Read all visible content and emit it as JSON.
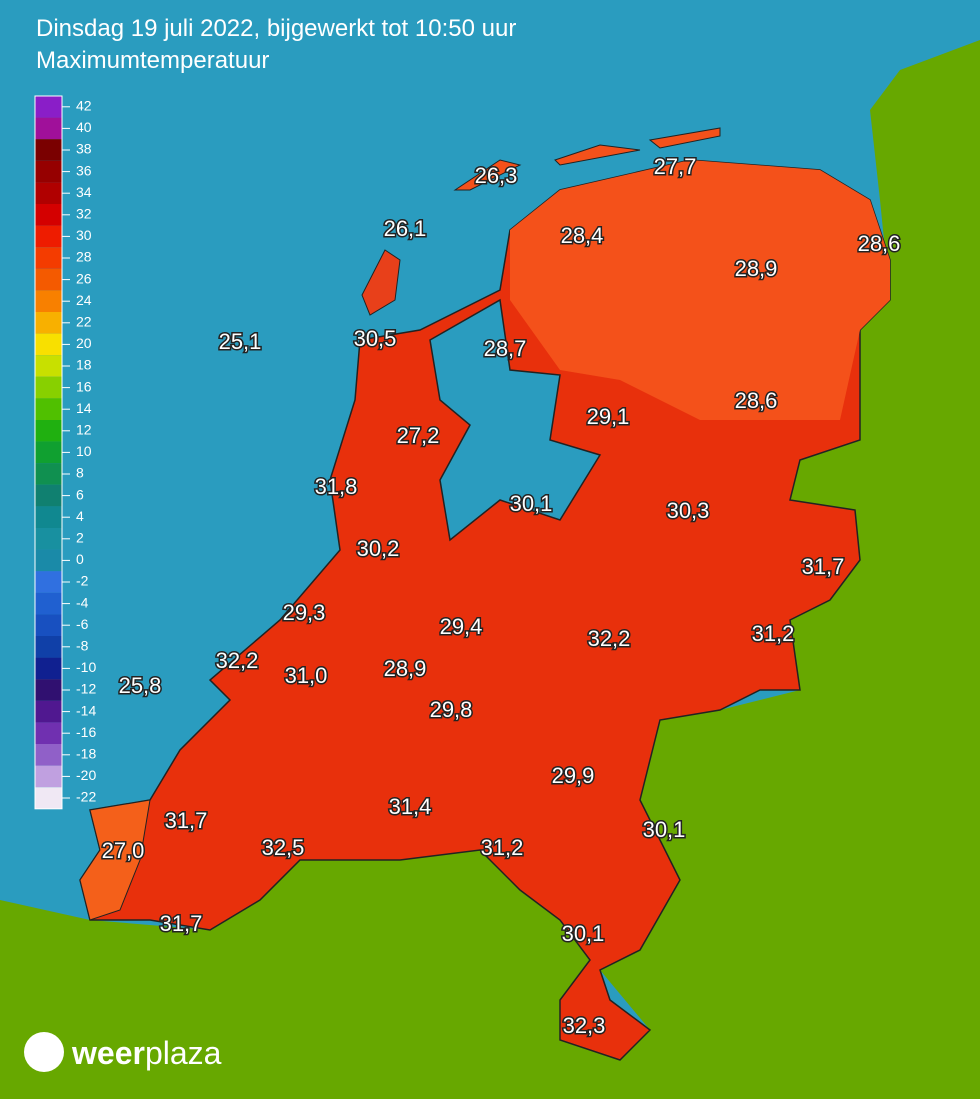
{
  "header": {
    "title": "Dinsdag 19 juli 2022, bijgewerkt tot 10:50 uur",
    "subtitle": "Maximumtemperatuur"
  },
  "legend": {
    "ticks": [
      "42",
      "40",
      "38",
      "36",
      "34",
      "32",
      "30",
      "28",
      "26",
      "24",
      "22",
      "20",
      "18",
      "16",
      "14",
      "12",
      "10",
      "8",
      "6",
      "4",
      "2",
      "0",
      "-2",
      "-4",
      "-6",
      "-8",
      "-10",
      "-12",
      "-14",
      "-16",
      "-18",
      "-20",
      "-22"
    ]
  },
  "stations": [
    "26,3",
    "27,7",
    "26,1",
    "28,4",
    "28,6",
    "28,9",
    "25,1",
    "30,5",
    "28,7",
    "29,1",
    "28,6",
    "27,2",
    "31,8",
    "30,1",
    "30,3",
    "30,2",
    "31,7",
    "29,3",
    "29,4",
    "32,2",
    "31,2",
    "32,2",
    "31,0",
    "28,9",
    "25,8",
    "29,8",
    "29,9",
    "31,4",
    "31,7",
    "30,1",
    "32,5",
    "31,2",
    "27,0",
    "31,7",
    "30,1",
    "32,3"
  ],
  "logo": {
    "bold": "weer",
    "light": "plaza"
  }
}
